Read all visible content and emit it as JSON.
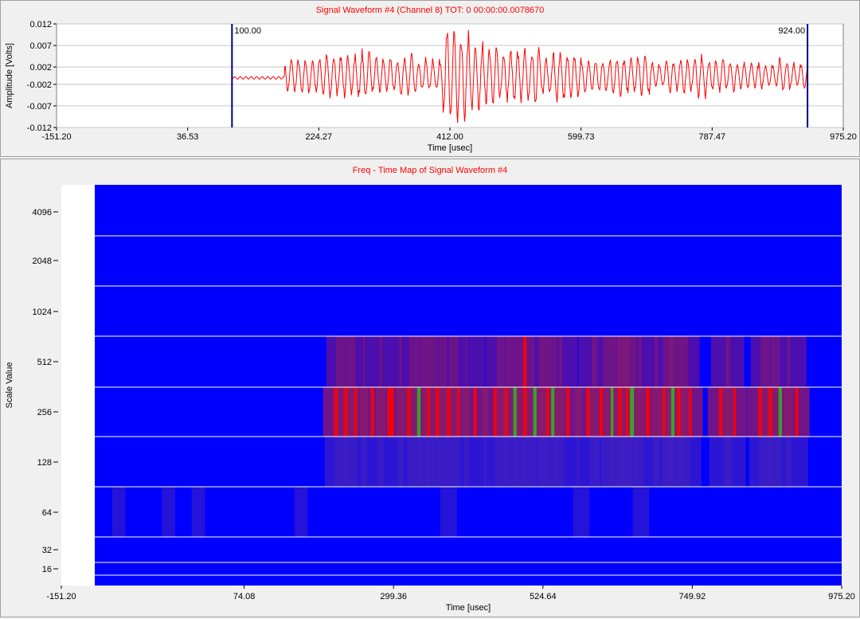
{
  "waveform": {
    "title": "Signal Waveform #4 (Channel 8)   TOT:  0 00:00:00.0078670",
    "ylabel": "Amplitude [Volts]",
    "xlabel": "Time [usec]",
    "y_ticks": [
      "0.012",
      "0.007",
      "0.002",
      "-0.002",
      "-0.007",
      "-0.012"
    ],
    "x_ticks": [
      "-151.20",
      "36.53",
      "224.27",
      "412.00",
      "599.73",
      "787.47",
      "975.20"
    ],
    "marker_left": "100.00",
    "marker_right": "924.00",
    "colors": {
      "signal": "#ff0000",
      "marker": "#000080",
      "grid": "#c8c8c8"
    }
  },
  "scalogram": {
    "title": "Freq - Time Map of Signal Waveform #4",
    "ylabel": "Scale Value",
    "xlabel": "Time [usec]",
    "y_ticks": [
      "4096",
      "2048",
      "1024",
      "512",
      "256",
      "128",
      "64",
      "32",
      "16"
    ],
    "x_ticks": [
      "-151.20",
      "74.08",
      "299.36",
      "524.64",
      "749.92",
      "975.20"
    ],
    "colors": {
      "background": "#0000ff",
      "grid": "#ffffff",
      "high": "#ff0000",
      "mid": "#8b1a6b",
      "low": "#4020c0",
      "peak": "#00ff00"
    }
  },
  "chart_data": [
    {
      "type": "line",
      "title": "Signal Waveform #4 (Channel 8)   TOT:  0 00:00:00.0078670",
      "xlabel": "Time [usec]",
      "ylabel": "Amplitude [Volts]",
      "xlim": [
        -151.2,
        975.2
      ],
      "ylim": [
        -0.012,
        0.012
      ],
      "markers": [
        100.0,
        924.0
      ],
      "series": [
        {
          "x": [
            100,
            150,
            170,
            200,
            220,
            250,
            280,
            300,
            320,
            340,
            360,
            380,
            400,
            420,
            440,
            460,
            480,
            500,
            520,
            540,
            560,
            580,
            600,
            620,
            640,
            660,
            680,
            700,
            720,
            740,
            760,
            780,
            800,
            820,
            840,
            860,
            880,
            900,
            924
          ],
          "values": [
            -0.0005,
            -0.0005,
            0.004,
            -0.004,
            0.005,
            -0.005,
            0.006,
            -0.004,
            0.004,
            -0.005,
            0.004,
            -0.004,
            0.011,
            -0.01,
            0.008,
            -0.007,
            0.006,
            -0.006,
            0.007,
            -0.005,
            0.006,
            -0.005,
            0.004,
            -0.004,
            0.005,
            -0.004,
            0.005,
            -0.003,
            0.004,
            -0.004,
            0.005,
            -0.004,
            0.004,
            -0.003,
            0.003,
            -0.003,
            0.004,
            -0.003,
            0.001
          ]
        }
      ]
    },
    {
      "type": "heatmap",
      "title": "Freq - Time Map of Signal Waveform #4",
      "xlabel": "Time [usec]",
      "ylabel": "Scale Value",
      "xlim": [
        -151.2,
        975.2
      ],
      "y_scales": [
        4096,
        2048,
        1024,
        512,
        256,
        128,
        64,
        32,
        16
      ],
      "cells": [
        {
          "scale": 256,
          "x0": 210,
          "x1": 215,
          "level": "high"
        },
        {
          "scale": 256,
          "x0": 225,
          "x1": 230,
          "level": "high"
        },
        {
          "scale": 256,
          "x0": 240,
          "x1": 244,
          "level": "high"
        },
        {
          "scale": 256,
          "x0": 265,
          "x1": 270,
          "level": "high"
        },
        {
          "scale": 256,
          "x0": 290,
          "x1": 300,
          "level": "high"
        },
        {
          "scale": 256,
          "x0": 320,
          "x1": 325,
          "level": "high"
        },
        {
          "scale": 256,
          "x0": 350,
          "x1": 354,
          "level": "high"
        },
        {
          "scale": 256,
          "x0": 363,
          "x1": 368,
          "level": "high"
        },
        {
          "scale": 256,
          "x0": 380,
          "x1": 385,
          "level": "high"
        },
        {
          "scale": 256,
          "x0": 395,
          "x1": 398,
          "level": "high"
        },
        {
          "scale": 256,
          "x0": 420,
          "x1": 425,
          "level": "high"
        },
        {
          "scale": 256,
          "x0": 450,
          "x1": 455,
          "level": "high"
        },
        {
          "scale": 256,
          "x0": 467,
          "x1": 471,
          "level": "high"
        },
        {
          "scale": 256,
          "x0": 495,
          "x1": 500,
          "level": "high"
        },
        {
          "scale": 256,
          "x0": 530,
          "x1": 534,
          "level": "high"
        },
        {
          "scale": 256,
          "x0": 560,
          "x1": 565,
          "level": "high"
        },
        {
          "scale": 256,
          "x0": 590,
          "x1": 595,
          "level": "high"
        },
        {
          "scale": 256,
          "x0": 610,
          "x1": 615,
          "level": "high"
        },
        {
          "scale": 256,
          "x0": 638,
          "x1": 643,
          "level": "high"
        },
        {
          "scale": 256,
          "x0": 650,
          "x1": 654,
          "level": "high"
        },
        {
          "scale": 256,
          "x0": 680,
          "x1": 686,
          "level": "high"
        },
        {
          "scale": 256,
          "x0": 705,
          "x1": 709,
          "level": "high"
        },
        {
          "scale": 256,
          "x0": 727,
          "x1": 732,
          "level": "high"
        },
        {
          "scale": 256,
          "x0": 745,
          "x1": 749,
          "level": "high"
        },
        {
          "scale": 256,
          "x0": 790,
          "x1": 795,
          "level": "high"
        },
        {
          "scale": 256,
          "x0": 812,
          "x1": 816,
          "level": "high"
        },
        {
          "scale": 256,
          "x0": 850,
          "x1": 855,
          "level": "high"
        },
        {
          "scale": 256,
          "x0": 865,
          "x1": 870,
          "level": "high"
        },
        {
          "scale": 256,
          "x0": 905,
          "x1": 910,
          "level": "high"
        },
        {
          "scale": 256,
          "x0": 335,
          "x1": 340,
          "level": "peak"
        },
        {
          "scale": 256,
          "x0": 480,
          "x1": 485,
          "level": "peak"
        },
        {
          "scale": 256,
          "x0": 510,
          "x1": 515,
          "level": "peak"
        },
        {
          "scale": 256,
          "x0": 537,
          "x1": 542,
          "level": "peak"
        },
        {
          "scale": 256,
          "x0": 627,
          "x1": 631,
          "level": "peak"
        },
        {
          "scale": 256,
          "x0": 656,
          "x1": 662,
          "level": "peak"
        },
        {
          "scale": 256,
          "x0": 718,
          "x1": 723,
          "level": "peak"
        },
        {
          "scale": 256,
          "x0": 880,
          "x1": 885,
          "level": "peak"
        },
        {
          "scale": 512,
          "x0": 495,
          "x1": 500,
          "level": "high"
        }
      ]
    }
  ]
}
